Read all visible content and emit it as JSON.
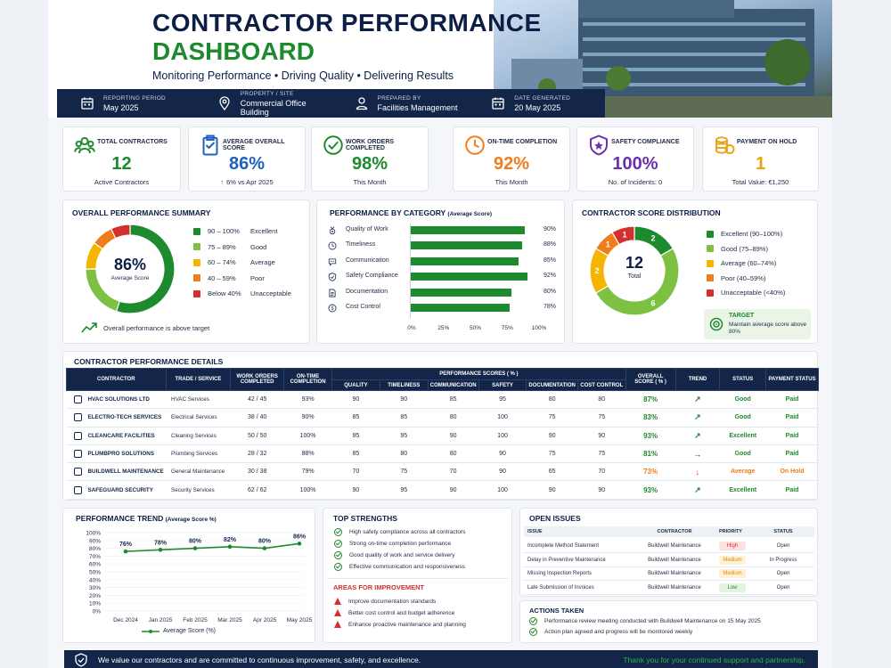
{
  "header": {
    "title_line1": "CONTRACTOR PERFORMANCE",
    "title_line2": "DASHBOARD",
    "subtitle": "Monitoring Performance  •  Driving Quality  •  Delivering Results",
    "info": [
      {
        "label": "REPORTING PERIOD",
        "value": "May 2025",
        "icon": "calendar-icon"
      },
      {
        "label": "PROPERTY / SITE",
        "value": "Commercial Office Building",
        "icon": "location-pin-icon"
      },
      {
        "label": "PREPARED BY",
        "value": "Facilities Management",
        "icon": "user-icon"
      },
      {
        "label": "DATE GENERATED",
        "value": "20 May 2025",
        "icon": "calendar-icon"
      }
    ]
  },
  "kpis": [
    {
      "label": "TOTAL CONTRACTORS",
      "value": "12",
      "sub": "Active Contractors",
      "color": "#1e8a2e",
      "icon": "people-icon"
    },
    {
      "label": "AVERAGE OVERALL SCORE",
      "value": "86%",
      "sub": "6% vs Apr 2025",
      "color": "#1f5fbf",
      "icon": "clipboard-icon"
    },
    {
      "label": "WORK ORDERS COMPLETED",
      "value": "98%",
      "sub": "This Month",
      "color": "#1e8a2e",
      "icon": "check-circle-icon"
    },
    {
      "label": "ON-TIME COMPLETION",
      "value": "92%",
      "sub": "This Month",
      "color": "#ef7d1a",
      "icon": "clock-icon"
    },
    {
      "label": "SAFETY COMPLIANCE",
      "value": "100%",
      "sub": "No. of Incidents: 0",
      "color": "#6a2fb0",
      "icon": "shield-star-icon"
    },
    {
      "label": "PAYMENT ON HOLD",
      "value": "1",
      "sub": "Total Value: €1,250",
      "color": "#e8a317",
      "icon": "coins-icon"
    }
  ],
  "summary": {
    "title": "OVERALL PERFORMANCE SUMMARY",
    "center_value": "86%",
    "center_label": "Average Score",
    "legend": [
      {
        "range": "90 – 100%",
        "label": "Excellent",
        "color": "#1e8a2e"
      },
      {
        "range": "75 – 89%",
        "label": "Good",
        "color": "#7cc142"
      },
      {
        "range": "60 – 74%",
        "label": "Average",
        "color": "#f4b400"
      },
      {
        "range": "40 – 59%",
        "label": "Poor",
        "color": "#ef7d1a"
      },
      {
        "range": "Below 40%",
        "label": "Unacceptable",
        "color": "#d32f2f"
      }
    ],
    "note": "Overall performance is above target"
  },
  "category": {
    "title": "PERFORMANCE BY CATEGORY",
    "title_suffix": "(Average Score)",
    "ticks": [
      "0%",
      "25%",
      "50%",
      "75%",
      "100%"
    ]
  },
  "distribution": {
    "title": "CONTRACTOR SCORE DISTRIBUTION",
    "center_value": "12",
    "center_label": "Total",
    "legend": [
      {
        "label": "Excellent (90–100%)",
        "color": "#1e8a2e"
      },
      {
        "label": "Good (75–89%)",
        "color": "#7cc142"
      },
      {
        "label": "Average (60–74%)",
        "color": "#f4b400"
      },
      {
        "label": "Poor (40–59%)",
        "color": "#ef7d1a"
      },
      {
        "label": "Unacceptable (<40%)",
        "color": "#d32f2f"
      }
    ],
    "target_title": "TARGET",
    "target_text": "Maintain average score above 80%"
  },
  "details": {
    "title": "CONTRACTOR PERFORMANCE DETAILS",
    "headers": {
      "contractor": "CONTRACTOR",
      "trade": "TRADE / SERVICE",
      "work_orders": "WORK ORDERS COMPLETED",
      "on_time": "ON-TIME COMPLETION",
      "scores_group": "PERFORMANCE SCORES ( % )",
      "overall": "OVERALL SCORE ( % )",
      "trend": "TREND",
      "status": "STATUS",
      "payment": "PAYMENT STATUS",
      "score_cols": [
        "QUALITY",
        "TIMELINESS",
        "COMMUNICATION",
        "SAFETY",
        "DOCUMENTATION",
        "COST CONTROL"
      ]
    },
    "rows": [
      {
        "name": "HVAC SOLUTIONS LTD",
        "trade": "HVAC Services",
        "wo": "42 / 45",
        "ontime": "93%",
        "scores": [
          "90",
          "90",
          "85",
          "95",
          "80",
          "80"
        ],
        "overall": "87%",
        "trend": "↗",
        "status": "Good",
        "payment": "Paid"
      },
      {
        "name": "ELECTRO-TECH SERVICES",
        "trade": "Electrical Services",
        "wo": "38 / 40",
        "ontime": "90%",
        "scores": [
          "85",
          "85",
          "80",
          "100",
          "75",
          "75"
        ],
        "overall": "83%",
        "trend": "↗",
        "status": "Good",
        "payment": "Paid"
      },
      {
        "name": "CLEANCARE FACILITIES",
        "trade": "Cleaning Services",
        "wo": "50 / 50",
        "ontime": "100%",
        "scores": [
          "95",
          "95",
          "90",
          "100",
          "90",
          "90"
        ],
        "overall": "93%",
        "trend": "↗",
        "status": "Excellent",
        "payment": "Paid"
      },
      {
        "name": "PLUMBPRO SOLUTIONS",
        "trade": "Plumbing Services",
        "wo": "28 / 32",
        "ontime": "88%",
        "scores": [
          "85",
          "80",
          "80",
          "90",
          "75",
          "75"
        ],
        "overall": "81%",
        "trend": "→",
        "status": "Good",
        "payment": "Paid"
      },
      {
        "name": "BUILDWELL MAINTENANCE",
        "trade": "General Maintenance",
        "wo": "30 / 38",
        "ontime": "79%",
        "scores": [
          "70",
          "75",
          "70",
          "90",
          "65",
          "70"
        ],
        "overall": "73%",
        "trend": "↓",
        "status": "Average",
        "payment": "On Hold"
      },
      {
        "name": "SAFEGUARD SECURITY",
        "trade": "Security Services",
        "wo": "62 / 62",
        "ontime": "100%",
        "scores": [
          "90",
          "95",
          "90",
          "100",
          "90",
          "90"
        ],
        "overall": "93%",
        "trend": "↗",
        "status": "Excellent",
        "payment": "Paid"
      }
    ]
  },
  "trend": {
    "title": "PERFORMANCE TREND",
    "title_suffix": "(Average Score %)",
    "legend": "Average Score (%)"
  },
  "strengths": {
    "title": "TOP STRENGTHS",
    "items": [
      "High safety compliance across all contractors",
      "Strong on-time completion performance",
      "Good quality of work and service delivery",
      "Effective communication and responsiveness"
    ],
    "improve_title": "AREAS FOR IMPROVEMENT",
    "improve_items": [
      "Improve documentation standards",
      "Better cost control and budget adherence",
      "Enhance proactive maintenance and planning"
    ]
  },
  "issues": {
    "title": "OPEN ISSUES",
    "headers": [
      "ISSUE",
      "CONTRACTOR",
      "PRIORITY",
      "STATUS"
    ],
    "rows": [
      {
        "issue": "Incomplete Method Statement",
        "contractor": "Buildwell Maintenance",
        "priority": "High",
        "status": "Open"
      },
      {
        "issue": "Delay in Preventive Maintenance",
        "contractor": "Buildwell Maintenance",
        "priority": "Medium",
        "status": "In Progress"
      },
      {
        "issue": "Missing Inspection Reports",
        "contractor": "Buildwell Maintenance",
        "priority": "Medium",
        "status": "Open"
      },
      {
        "issue": "Late Submission of Invoices",
        "contractor": "Buildwell Maintenance",
        "priority": "Low",
        "status": "Open"
      }
    ],
    "actions_title": "ACTIONS TAKEN",
    "actions": [
      "Performance review meeting conducted with Buildwell Maintenance on 15 May 2025",
      "Action plan agreed and progress will be monitored weekly"
    ]
  },
  "footer": {
    "left": "We value our contractors and are committed to continuous improvement, safety, and excellence.",
    "right": "Thank you for your continued support and partnership."
  },
  "chart_data": [
    {
      "type": "pie",
      "title": "OVERALL PERFORMANCE SUMMARY",
      "categories": [
        "90 – 100%",
        "75 – 89%",
        "60 – 74%",
        "40 – 59%",
        "Below 40%"
      ],
      "values": [
        55,
        20,
        10,
        8,
        7
      ],
      "colors": [
        "#1e8a2e",
        "#7cc142",
        "#f4b400",
        "#ef7d1a",
        "#d32f2f"
      ]
    },
    {
      "type": "bar",
      "title": "PERFORMANCE BY CATEGORY",
      "categories": [
        "Quality of Work",
        "Timeliness",
        "Communication",
        "Safety Compliance",
        "Documentation",
        "Cost Control"
      ],
      "values": [
        90,
        88,
        85,
        92,
        80,
        78
      ],
      "labels": [
        "90%",
        "88%",
        "85%",
        "92%",
        "80%",
        "78%"
      ],
      "icons": [
        "medal-icon",
        "clock-icon",
        "chat-icon",
        "shield-icon",
        "document-icon",
        "coin-icon"
      ],
      "xlim": [
        0,
        100
      ]
    },
    {
      "type": "pie",
      "title": "CONTRACTOR SCORE DISTRIBUTION",
      "categories": [
        "Excellent (90–100%)",
        "Good (75–89%)",
        "Average (60–74%)",
        "Poor (40–59%)",
        "Unacceptable (<40%)"
      ],
      "values": [
        2,
        6,
        2,
        1,
        1
      ],
      "colors": [
        "#1e8a2e",
        "#7cc142",
        "#f4b400",
        "#ef7d1a",
        "#d32f2f"
      ]
    },
    {
      "type": "line",
      "title": "PERFORMANCE TREND",
      "categories": [
        "Dec 2024",
        "Jan 2025",
        "Feb 2025",
        "Mar 2025",
        "Apr 2025",
        "May 2025"
      ],
      "series": [
        {
          "name": "Average Score (%)",
          "values": [
            76,
            78,
            80,
            82,
            80,
            86
          ]
        }
      ],
      "ylim": [
        0,
        100
      ],
      "yticks": [
        "0%",
        "10%",
        "20%",
        "30%",
        "40%",
        "50%",
        "60%",
        "70%",
        "80%",
        "90%",
        "100%"
      ]
    }
  ]
}
